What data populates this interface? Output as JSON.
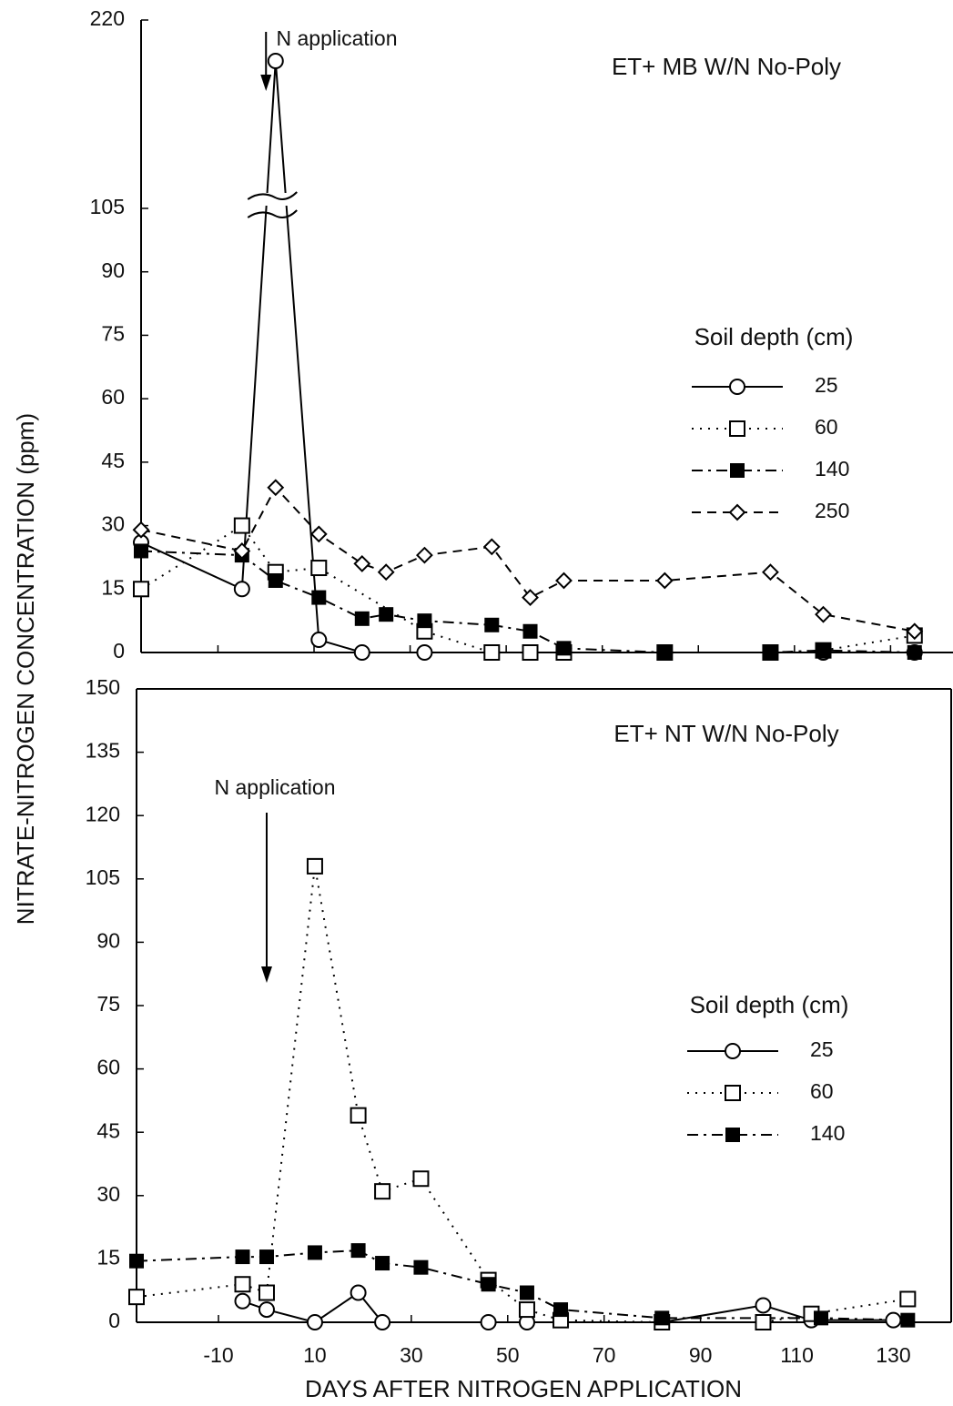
{
  "chart_data": [
    {
      "type": "line",
      "panel_label": "ET+  MB  W/N  No-Poly",
      "ylabel": "NITRATE-NITROGEN CONCENTRATION (ppm)",
      "xlim": [
        -26,
        143
      ],
      "ylim": [
        0,
        220
      ],
      "yticks": [
        0,
        15,
        30,
        45,
        60,
        75,
        90,
        105,
        220
      ],
      "axis_break": true,
      "annotations": [
        {
          "text": "N application",
          "x": 0
        }
      ],
      "legend_title": "Soil depth (cm)",
      "legend": "center right",
      "series": [
        {
          "name": "25",
          "marker": "circle",
          "line": "solid",
          "color": "#000",
          "x": [
            -26,
            -5,
            2,
            11,
            20,
            33,
            47,
            55,
            62,
            83,
            105,
            116,
            135
          ],
          "values": [
            26,
            15,
            195,
            3,
            0,
            0,
            0,
            0,
            0,
            0,
            0,
            0,
            0
          ]
        },
        {
          "name": "60",
          "marker": "square",
          "line": "dotted",
          "color": "#000",
          "x": [
            -26,
            -5,
            2,
            11,
            33,
            47,
            55,
            62,
            83,
            105,
            116,
            135
          ],
          "values": [
            15,
            30,
            19,
            20,
            5,
            0,
            0,
            0,
            0,
            0,
            0.5,
            4
          ]
        },
        {
          "name": "140",
          "marker": "filled-square",
          "line": "dashdot",
          "color": "#000",
          "x": [
            -26,
            -5,
            2,
            11,
            20,
            25,
            33,
            47,
            55,
            62,
            83,
            105,
            116,
            135
          ],
          "values": [
            24,
            23,
            17,
            13,
            8,
            9,
            7.5,
            6.5,
            5,
            1,
            0,
            0,
            0.5,
            0
          ]
        },
        {
          "name": "250",
          "marker": "diamond",
          "line": "dashed",
          "color": "#000",
          "x": [
            -26,
            -5,
            2,
            11,
            20,
            25,
            33,
            47,
            55,
            62,
            83,
            105,
            116,
            135
          ],
          "values": [
            29,
            24,
            39,
            28,
            21,
            19,
            23,
            25,
            13,
            17,
            17,
            19,
            9,
            5
          ]
        }
      ]
    },
    {
      "type": "line",
      "panel_label": "ET+  NT  W/N   No-Poly",
      "xlabel": "DAYS AFTER NITROGEN APPLICATION",
      "xlim": [
        -27,
        142
      ],
      "xticks": [
        -10,
        10,
        30,
        50,
        70,
        90,
        110,
        130
      ],
      "ylim": [
        0,
        150
      ],
      "yticks": [
        0,
        15,
        30,
        45,
        60,
        75,
        90,
        105,
        120,
        135,
        150
      ],
      "annotations": [
        {
          "text": "N application",
          "x": 0
        }
      ],
      "legend_title": "Soil depth (cm)",
      "legend": "center right",
      "series": [
        {
          "name": "25",
          "marker": "circle",
          "line": "solid",
          "color": "#000",
          "x": [
            -5,
            0,
            10,
            19,
            24,
            46,
            54,
            82,
            103,
            113,
            130
          ],
          "values": [
            5,
            3,
            0,
            7,
            0,
            0,
            0,
            0,
            4,
            0.5,
            0.5
          ]
        },
        {
          "name": "60",
          "marker": "square",
          "line": "dotted",
          "color": "#000",
          "x": [
            -27,
            -5,
            0,
            10,
            19,
            24,
            32,
            46,
            54,
            61,
            82,
            103,
            113,
            133
          ],
          "values": [
            6,
            9,
            7,
            108,
            49,
            31,
            34,
            10,
            3,
            0.5,
            0,
            0,
            2,
            5.5
          ]
        },
        {
          "name": "140",
          "marker": "filled-square",
          "line": "dashdot",
          "color": "#000",
          "x": [
            -27,
            -5,
            0,
            10,
            19,
            24,
            32,
            46,
            54,
            61,
            82,
            115,
            133
          ],
          "values": [
            14.5,
            15.5,
            15.5,
            16.5,
            17,
            14,
            13,
            9,
            7,
            3,
            1,
            1,
            0.5
          ]
        }
      ]
    }
  ]
}
